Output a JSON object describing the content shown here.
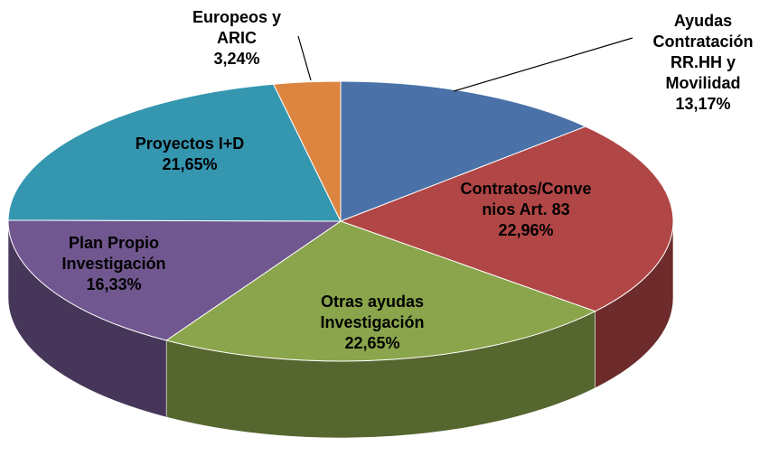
{
  "chart_data": {
    "type": "pie3d",
    "categories": [
      "Ayudas Contratación RR.HH y Movilidad",
      "Contratos/Convenios Art. 83",
      "Otras ayudas Investigación",
      "Plan Propio Investigación",
      "Proyectos I+D",
      "Europeos y ARIC"
    ],
    "values": [
      13.17,
      22.96,
      22.65,
      16.33,
      21.65,
      3.24
    ],
    "value_labels": [
      "13,17%",
      "22,96%",
      "22,65%",
      "16,33%",
      "21,65%",
      "3,24%"
    ],
    "colors": [
      "#4a72a8",
      "#b04645",
      "#8aa54b",
      "#71578f",
      "#3596b0",
      "#dc8540"
    ]
  }
}
